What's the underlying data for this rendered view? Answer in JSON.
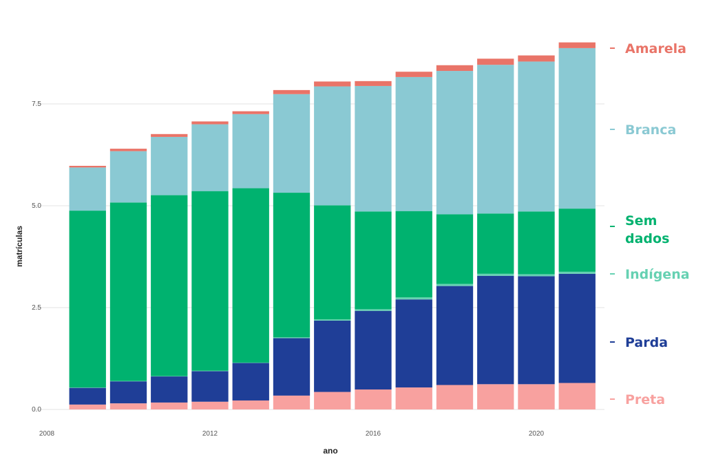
{
  "chart_data": {
    "type": "bar",
    "stacked": true,
    "xlabel": "ano",
    "ylabel": "matrículas",
    "x": [
      2009,
      2010,
      2011,
      2012,
      2013,
      2014,
      2015,
      2016,
      2017,
      2018,
      2019,
      2020,
      2021
    ],
    "x_ticks": [
      {
        "value": 2008,
        "label": "2008"
      },
      {
        "value": 2012,
        "label": "2012"
      },
      {
        "value": 2016,
        "label": "2016"
      },
      {
        "value": 2020,
        "label": "2020"
      }
    ],
    "y_ticks": [
      {
        "value": 0,
        "label": "0.0"
      },
      {
        "value": 2.5,
        "label": "2.5"
      },
      {
        "value": 5,
        "label": "5.0"
      },
      {
        "value": 7.5,
        "label": "7.5"
      }
    ],
    "xlim": [
      2008,
      2021.5
    ],
    "ylim": [
      0,
      9.0
    ],
    "grid": true,
    "legend_placement": "right",
    "series": [
      {
        "name": "Preta",
        "color": "#F8A19F",
        "values": [
          0.12,
          0.15,
          0.17,
          0.19,
          0.22,
          0.34,
          0.43,
          0.49,
          0.54,
          0.6,
          0.62,
          0.62,
          0.65
        ]
      },
      {
        "name": "Parda",
        "color": "#1F3E97",
        "values": [
          0.41,
          0.54,
          0.64,
          0.75,
          0.92,
          1.41,
          1.75,
          1.93,
          2.16,
          2.43,
          2.66,
          2.65,
          2.68
        ]
      },
      {
        "name": "Indígena",
        "color": "#66D1B2",
        "values": [
          0.01,
          0.01,
          0.01,
          0.01,
          0.01,
          0.02,
          0.03,
          0.04,
          0.05,
          0.05,
          0.05,
          0.05,
          0.05
        ]
      },
      {
        "name": "Sem dados",
        "color": "#00B26F",
        "values": [
          4.34,
          4.38,
          4.44,
          4.41,
          4.28,
          3.55,
          2.8,
          2.4,
          2.12,
          1.71,
          1.48,
          1.54,
          1.55
        ]
      },
      {
        "name": "Branca",
        "color": "#8AC9D3",
        "values": [
          1.06,
          1.26,
          1.43,
          1.64,
          1.82,
          2.42,
          2.92,
          3.08,
          3.29,
          3.52,
          3.65,
          3.68,
          3.94
        ]
      },
      {
        "name": "Amarela",
        "color": "#E97468",
        "values": [
          0.04,
          0.06,
          0.07,
          0.07,
          0.07,
          0.1,
          0.12,
          0.12,
          0.13,
          0.14,
          0.15,
          0.15,
          0.14
        ]
      }
    ],
    "legend": [
      {
        "name": "Amarela",
        "lines": [
          "Amarela"
        ],
        "color": "#E97468"
      },
      {
        "name": "Branca",
        "lines": [
          "Branca"
        ],
        "color": "#8AC9D3"
      },
      {
        "name": "Sem dados",
        "lines": [
          "Sem",
          "dados"
        ],
        "color": "#00B26F"
      },
      {
        "name": "Indígena",
        "lines": [
          "Indígena"
        ],
        "color": "#66D1B2"
      },
      {
        "name": "Parda",
        "lines": [
          "Parda"
        ],
        "color": "#1F3E97"
      },
      {
        "name": "Preta",
        "lines": [
          "Preta"
        ],
        "color": "#F8A19F"
      }
    ]
  }
}
